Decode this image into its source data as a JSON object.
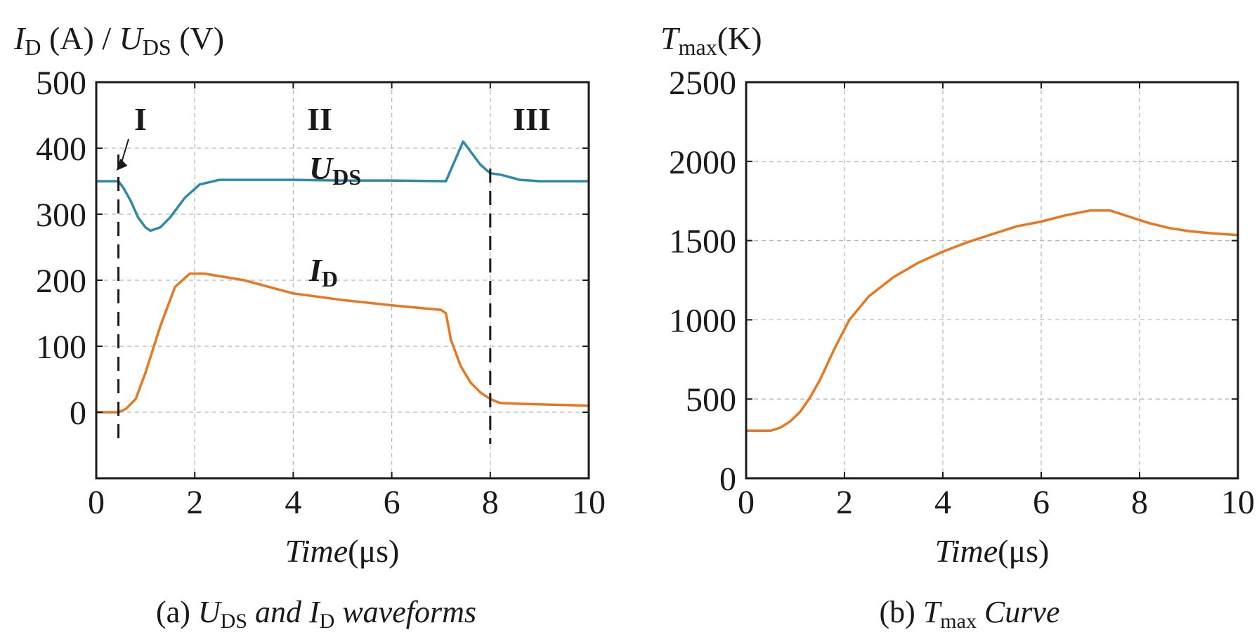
{
  "colors": {
    "uds": "#2e8aa6",
    "id": "#e87722",
    "tmax": "#e87722",
    "axis": "#1a1a1a",
    "grid": "#b8b8b8"
  },
  "chart_data": [
    {
      "type": "line",
      "ylabel": {
        "i_sym": "I",
        "i_sub": "D",
        "i_unit": " (A) / ",
        "u_sym": "U",
        "u_sub": "DS",
        "u_unit": " (V)"
      },
      "xlabel": {
        "var": "Time",
        "unit": "(μs)"
      },
      "caption": {
        "prefix": "(a) ",
        "u_sym": "U",
        "u_sub": "DS",
        "mid": " and ",
        "i_sym": "I",
        "i_sub": "D",
        "tail": " waveforms"
      },
      "xlim": [
        0,
        10
      ],
      "ylim": [
        -100,
        500
      ],
      "xticks": [
        "0",
        "2",
        "4",
        "6",
        "8",
        "10"
      ],
      "yticks": [
        "0",
        "100",
        "200",
        "300",
        "400",
        "500"
      ],
      "grid": true,
      "regions": [
        "I",
        "II",
        "III"
      ],
      "boundaries": [
        0.45,
        8.0
      ],
      "series": [
        {
          "name": "UDS",
          "label": {
            "sym": "U",
            "sub": "DS"
          },
          "x": [
            0,
            0.45,
            0.55,
            0.7,
            0.85,
            1.0,
            1.1,
            1.3,
            1.5,
            1.8,
            2.1,
            2.5,
            3,
            4,
            5,
            6,
            7.1,
            7.45,
            7.8,
            8.0,
            8.2,
            8.6,
            9,
            10
          ],
          "y": [
            350,
            350,
            340,
            320,
            295,
            280,
            275,
            280,
            295,
            325,
            345,
            352,
            352,
            352,
            351,
            351,
            350,
            410,
            375,
            362,
            360,
            352,
            350,
            350
          ]
        },
        {
          "name": "ID",
          "label": {
            "sym": "I",
            "sub": "D"
          },
          "x": [
            0,
            0.45,
            0.6,
            0.8,
            1.0,
            1.3,
            1.6,
            1.9,
            2.2,
            3,
            4,
            5,
            6,
            7.0,
            7.1,
            7.2,
            7.4,
            7.6,
            7.8,
            8.0,
            8.2,
            8.5,
            9,
            10
          ],
          "y": [
            0,
            0,
            5,
            20,
            60,
            130,
            190,
            210,
            210,
            200,
            180,
            170,
            162,
            155,
            150,
            110,
            70,
            45,
            30,
            20,
            14,
            13,
            12,
            10
          ]
        }
      ]
    },
    {
      "type": "line",
      "ylabel": {
        "sym": "T",
        "sub": "max",
        "unit": "(K)"
      },
      "xlabel": {
        "var": "Time",
        "unit": "(μs)"
      },
      "caption": {
        "prefix": "(b) ",
        "sym": "T",
        "sub": "max",
        "tail": " Curve"
      },
      "xlim": [
        0,
        10
      ],
      "ylim": [
        0,
        2500
      ],
      "xticks": [
        "0",
        "2",
        "4",
        "6",
        "8",
        "10"
      ],
      "yticks": [
        "0",
        "500",
        "1000",
        "1500",
        "2000",
        "2500"
      ],
      "grid": true,
      "series": [
        {
          "x": [
            0,
            0.5,
            0.7,
            0.9,
            1.1,
            1.3,
            1.5,
            1.8,
            2.1,
            2.5,
            3,
            3.5,
            4,
            4.5,
            5,
            5.5,
            6,
            6.5,
            7.0,
            7.4,
            7.8,
            8.2,
            8.6,
            9,
            9.5,
            10
          ],
          "y": [
            300,
            300,
            320,
            360,
            420,
            510,
            620,
            820,
            1000,
            1150,
            1270,
            1360,
            1430,
            1490,
            1540,
            1590,
            1620,
            1660,
            1690,
            1690,
            1650,
            1610,
            1580,
            1560,
            1545,
            1535
          ]
        }
      ]
    }
  ]
}
